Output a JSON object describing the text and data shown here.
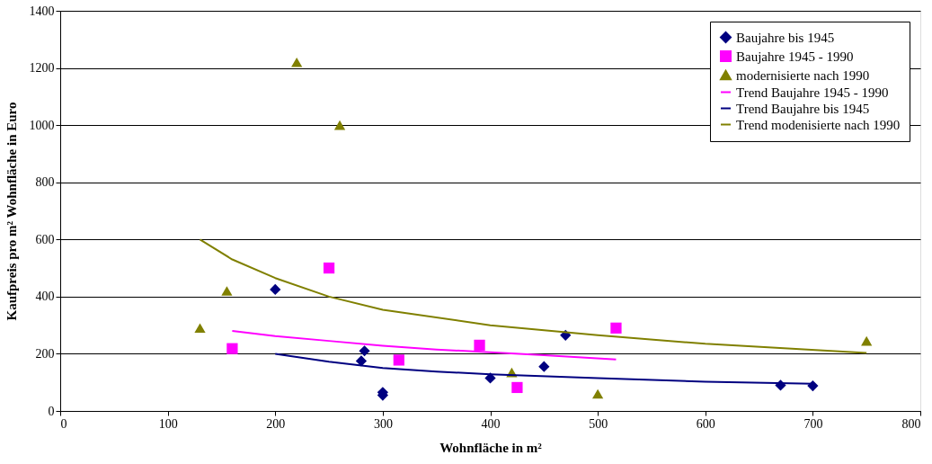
{
  "chart_data": {
    "type": "scatter",
    "xlabel": "Wohnfläche in m²",
    "ylabel": "Kaufpreis pro m² Wohnfläche in Euro",
    "xlim": [
      0,
      800
    ],
    "xticks": [
      0,
      100,
      200,
      300,
      400,
      500,
      600,
      700,
      800
    ],
    "ylim": [
      0,
      1400
    ],
    "yticks": [
      0,
      200,
      400,
      600,
      800,
      1000,
      1200,
      1400
    ],
    "grid": "y",
    "legend": "top right",
    "series": [
      {
        "name": "Baujahre bis 1945",
        "marker": "diamond",
        "color": "#000080",
        "x": [
          200,
          280,
          283,
          300,
          300,
          400,
          450,
          470,
          670,
          700
        ],
        "values": [
          425,
          175,
          210,
          65,
          55,
          115,
          155,
          265,
          90,
          88
        ]
      },
      {
        "name": "Baujahre 1945 - 1990",
        "marker": "square",
        "color": "#ff00ff",
        "x": [
          160,
          250,
          315,
          390,
          425,
          517
        ],
        "values": [
          218,
          500,
          178,
          230,
          82,
          290
        ]
      },
      {
        "name": "modernisierte nach 1990",
        "marker": "triangle",
        "color": "#808000",
        "x": [
          130,
          155,
          220,
          260,
          420,
          500,
          750
        ],
        "values": [
          290,
          420,
          1220,
          1000,
          135,
          60,
          245
        ]
      },
      {
        "name": "Trend Baujahre 1945 - 1990",
        "type": "line",
        "color": "#ff00ff",
        "x": [
          160,
          200,
          250,
          300,
          350,
          400,
          450,
          517
        ],
        "values": [
          280,
          262,
          245,
          228,
          215,
          205,
          195,
          180
        ]
      },
      {
        "name": "Trend Baujahre bis 1945",
        "type": "line",
        "color": "#000080",
        "x": [
          200,
          250,
          300,
          350,
          400,
          500,
          600,
          700
        ],
        "values": [
          200,
          172,
          150,
          138,
          128,
          115,
          102,
          95
        ]
      },
      {
        "name": "Trend modenisierte nach 1990",
        "type": "line",
        "color": "#808000",
        "x": [
          130,
          160,
          200,
          250,
          300,
          400,
          500,
          600,
          750
        ],
        "values": [
          600,
          530,
          465,
          400,
          354,
          300,
          265,
          235,
          203
        ]
      }
    ]
  }
}
